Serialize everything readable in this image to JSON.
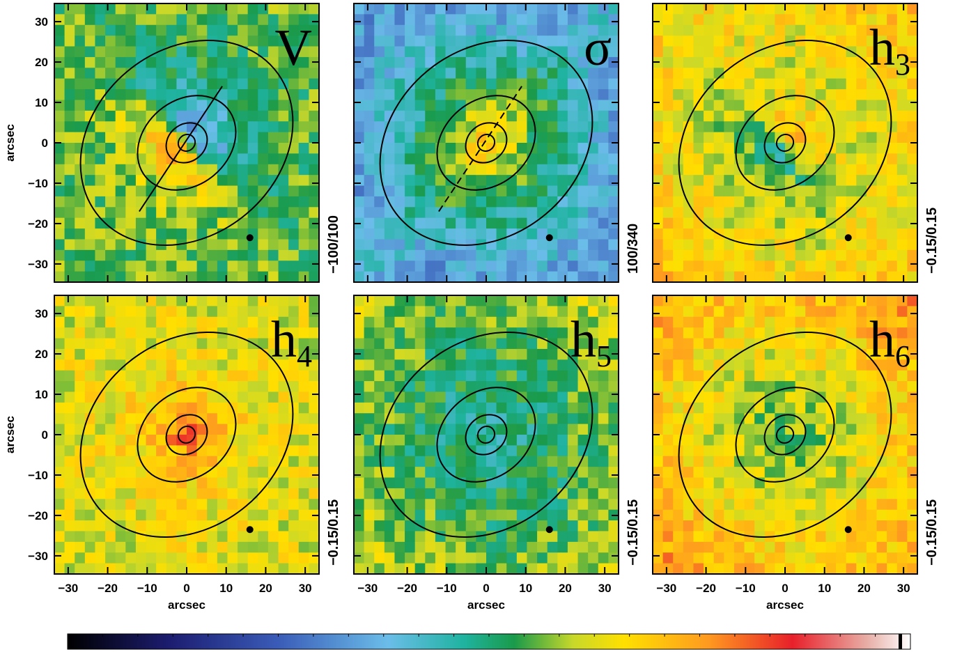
{
  "chart_data": [
    {
      "type": "map",
      "title": "V",
      "range_label": "−100/100"
    },
    {
      "type": "map",
      "title": "σ",
      "range_label": "100/340"
    },
    {
      "type": "map",
      "title": "h",
      "title_sub": "3",
      "range_label": "−0.15/0.15"
    },
    {
      "type": "map",
      "title": "h",
      "title_sub": "4",
      "range_label": "−0.15/0.15"
    },
    {
      "type": "map",
      "title": "h",
      "title_sub": "5",
      "range_label": "−0.15/0.15"
    },
    {
      "type": "map",
      "title": "h",
      "title_sub": "6",
      "range_label": "−0.15/0.15"
    }
  ],
  "axes": {
    "xlabel": "arcsec",
    "ylabel": "arcsec",
    "xlim": [
      -33.5,
      33.5
    ],
    "ylim": [
      -34.5,
      34.5
    ],
    "xticks": [
      {
        "value": -30,
        "label": "−30"
      },
      {
        "value": -20,
        "label": "−20"
      },
      {
        "value": -10,
        "label": "−10"
      },
      0,
      10,
      20,
      30
    ],
    "yticks": [
      {
        "value": -30,
        "label": "−30"
      },
      {
        "value": -20,
        "label": "−20"
      },
      {
        "value": -10,
        "label": "−10"
      },
      0,
      10,
      20,
      30
    ]
  }
}
